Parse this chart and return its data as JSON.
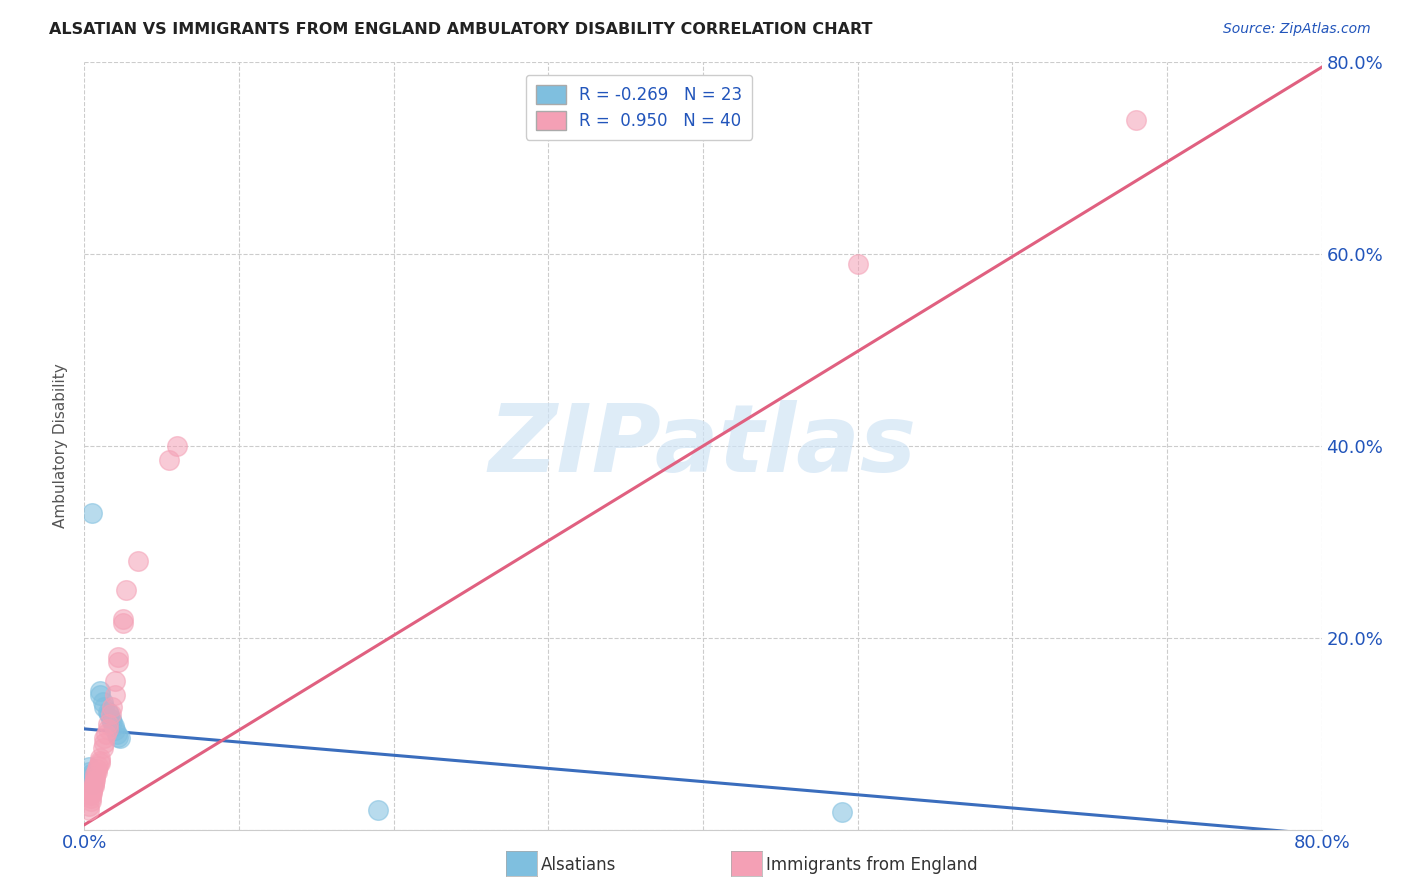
{
  "title": "ALSATIAN VS IMMIGRANTS FROM ENGLAND AMBULATORY DISABILITY CORRELATION CHART",
  "source": "Source: ZipAtlas.com",
  "ylabel": "Ambulatory Disability",
  "xlim": [
    0,
    0.8
  ],
  "ylim": [
    0,
    0.8
  ],
  "xticks": [
    0.0,
    0.1,
    0.2,
    0.3,
    0.4,
    0.5,
    0.6,
    0.7,
    0.8
  ],
  "yticks": [
    0.0,
    0.2,
    0.4,
    0.6,
    0.8
  ],
  "xtick_labels": [
    "0.0%",
    "",
    "",
    "",
    "",
    "",
    "",
    "",
    "80.0%"
  ],
  "ytick_labels": [
    "",
    "20.0%",
    "40.0%",
    "60.0%",
    "80.0%"
  ],
  "legend_r1": "R = -0.269",
  "legend_n1": "N = 23",
  "legend_r2": "R =  0.950",
  "legend_n2": "N = 40",
  "alsatians_scatter": [
    [
      0.005,
      0.33
    ],
    [
      0.01,
      0.145
    ],
    [
      0.01,
      0.14
    ],
    [
      0.012,
      0.133
    ],
    [
      0.013,
      0.128
    ],
    [
      0.015,
      0.123
    ],
    [
      0.016,
      0.12
    ],
    [
      0.017,
      0.115
    ],
    [
      0.018,
      0.112
    ],
    [
      0.019,
      0.108
    ],
    [
      0.02,
      0.104
    ],
    [
      0.021,
      0.1
    ],
    [
      0.022,
      0.097
    ],
    [
      0.023,
      0.095
    ],
    [
      0.003,
      0.065
    ],
    [
      0.003,
      0.06
    ],
    [
      0.004,
      0.058
    ],
    [
      0.004,
      0.055
    ],
    [
      0.004,
      0.052
    ],
    [
      0.005,
      0.05
    ],
    [
      0.005,
      0.048
    ],
    [
      0.19,
      0.02
    ],
    [
      0.49,
      0.018
    ]
  ],
  "england_scatter": [
    [
      0.003,
      0.02
    ],
    [
      0.003,
      0.025
    ],
    [
      0.004,
      0.03
    ],
    [
      0.004,
      0.033
    ],
    [
      0.004,
      0.036
    ],
    [
      0.005,
      0.038
    ],
    [
      0.005,
      0.04
    ],
    [
      0.005,
      0.042
    ],
    [
      0.006,
      0.045
    ],
    [
      0.006,
      0.048
    ],
    [
      0.006,
      0.05
    ],
    [
      0.007,
      0.052
    ],
    [
      0.007,
      0.055
    ],
    [
      0.007,
      0.058
    ],
    [
      0.008,
      0.06
    ],
    [
      0.008,
      0.063
    ],
    [
      0.009,
      0.066
    ],
    [
      0.01,
      0.069
    ],
    [
      0.01,
      0.072
    ],
    [
      0.01,
      0.075
    ],
    [
      0.012,
      0.085
    ],
    [
      0.013,
      0.09
    ],
    [
      0.013,
      0.095
    ],
    [
      0.014,
      0.1
    ],
    [
      0.015,
      0.105
    ],
    [
      0.015,
      0.11
    ],
    [
      0.017,
      0.12
    ],
    [
      0.018,
      0.128
    ],
    [
      0.02,
      0.14
    ],
    [
      0.02,
      0.155
    ],
    [
      0.022,
      0.175
    ],
    [
      0.022,
      0.18
    ],
    [
      0.025,
      0.215
    ],
    [
      0.025,
      0.22
    ],
    [
      0.027,
      0.25
    ],
    [
      0.035,
      0.28
    ],
    [
      0.055,
      0.385
    ],
    [
      0.06,
      0.4
    ],
    [
      0.5,
      0.59
    ],
    [
      0.68,
      0.74
    ]
  ],
  "alsatian_line_x": [
    0.0,
    0.8
  ],
  "alsatian_line_y": [
    0.105,
    -0.005
  ],
  "england_line_x": [
    0.0,
    0.8
  ],
  "england_line_y": [
    0.005,
    0.795
  ],
  "alsatian_color": "#7fbfdf",
  "england_color": "#f4a0b5",
  "alsatian_line_color": "#3a6dbd",
  "england_line_color": "#e06080",
  "watermark_text": "ZIPatlas",
  "background_color": "#ffffff",
  "grid_color": "#cccccc"
}
